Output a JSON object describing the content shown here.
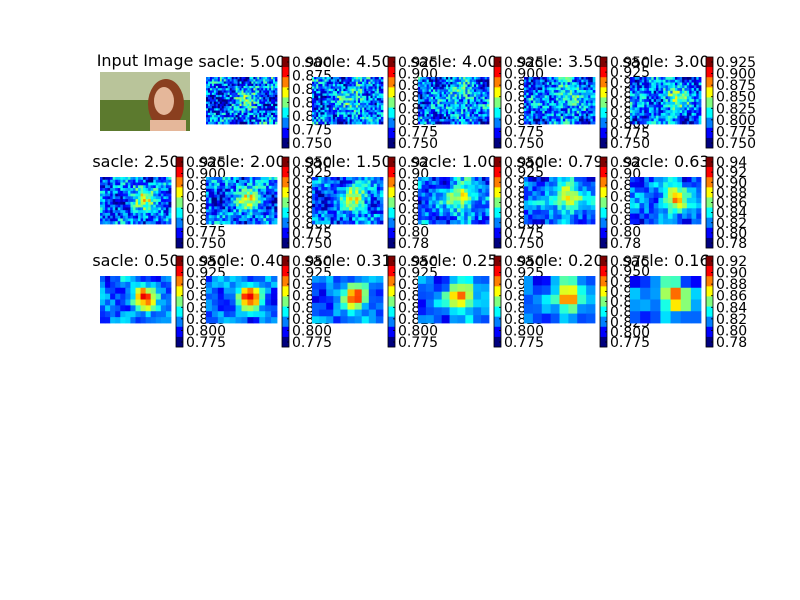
{
  "input_panel": {
    "title": "Input Image",
    "sky_color": "#b9c49a",
    "field_color": "#5c7a2e",
    "hair_color": "#8a3f1f",
    "skin_color": "#e5b79a"
  },
  "colormap": [
    "#00007f",
    "#0000ff",
    "#007fff",
    "#00ffff",
    "#7fff7f",
    "#ffff00",
    "#ff7f00",
    "#ff0000",
    "#7f0000"
  ],
  "chart_data": {
    "type": "heatmap",
    "colormap_name": "jet",
    "panels": [
      {
        "title": "sacle: 5.00",
        "ticks": [
          "0.900",
          "0.875",
          "0.850",
          "0.825",
          "0.800",
          "0.775",
          "0.750"
        ],
        "detail": 1.0
      },
      {
        "title": "sacle: 4.50",
        "ticks": [
          "0.925",
          "0.900",
          "0.875",
          "0.850",
          "0.825",
          "0.800",
          "0.775",
          "0.750"
        ],
        "detail": 0.95
      },
      {
        "title": "sacle: 4.00",
        "ticks": [
          "0.925",
          "0.900",
          "0.875",
          "0.850",
          "0.825",
          "0.800",
          "0.775",
          "0.750"
        ],
        "detail": 0.9
      },
      {
        "title": "sacle: 3.50",
        "ticks": [
          "0.950",
          "0.925",
          "0.900",
          "0.875",
          "0.850",
          "0.825",
          "0.800",
          "0.775",
          "0.750"
        ],
        "detail": 0.85
      },
      {
        "title": "sacle: 3.00",
        "ticks": [
          "0.925",
          "0.900",
          "0.875",
          "0.850",
          "0.825",
          "0.800",
          "0.775",
          "0.750"
        ],
        "detail": 0.8
      },
      {
        "title": "sacle: 2.50",
        "ticks": [
          "0.925",
          "0.900",
          "0.875",
          "0.850",
          "0.825",
          "0.800",
          "0.775",
          "0.750"
        ],
        "detail": 0.75
      },
      {
        "title": "sacle: 2.00",
        "ticks": [
          "0.950",
          "0.925",
          "0.900",
          "0.875",
          "0.850",
          "0.825",
          "0.800",
          "0.775",
          "0.750"
        ],
        "detail": 0.7
      },
      {
        "title": "sacle: 1.50",
        "ticks": [
          "0.92",
          "0.90",
          "0.88",
          "0.86",
          "0.84",
          "0.82",
          "0.80",
          "0.78"
        ],
        "detail": 0.6
      },
      {
        "title": "sacle: 1.00",
        "ticks": [
          "0.950",
          "0.925",
          "0.900",
          "0.875",
          "0.850",
          "0.825",
          "0.800",
          "0.775",
          "0.750"
        ],
        "detail": 0.5
      },
      {
        "title": "sacle: 0.79",
        "ticks": [
          "0.92",
          "0.90",
          "0.88",
          "0.86",
          "0.84",
          "0.82",
          "0.80",
          "0.78"
        ],
        "detail": 0.4
      },
      {
        "title": "sacle: 0.63",
        "ticks": [
          "0.94",
          "0.92",
          "0.90",
          "0.88",
          "0.86",
          "0.84",
          "0.82",
          "0.80",
          "0.78"
        ],
        "detail": 0.35
      },
      {
        "title": "sacle: 0.50",
        "ticks": [
          "0.950",
          "0.925",
          "0.900",
          "0.875",
          "0.850",
          "0.825",
          "0.800",
          "0.775"
        ],
        "detail": 0.3
      },
      {
        "title": "sacle: 0.40",
        "ticks": [
          "0.950",
          "0.925",
          "0.900",
          "0.875",
          "0.850",
          "0.825",
          "0.800",
          "0.775"
        ],
        "detail": 0.25
      },
      {
        "title": "sacle: 0.31",
        "ticks": [
          "0.950",
          "0.925",
          "0.900",
          "0.875",
          "0.850",
          "0.825",
          "0.800",
          "0.775"
        ],
        "detail": 0.2
      },
      {
        "title": "sacle: 0.25",
        "ticks": [
          "0.950",
          "0.925",
          "0.900",
          "0.875",
          "0.850",
          "0.825",
          "0.800",
          "0.775"
        ],
        "detail": 0.15
      },
      {
        "title": "sacle: 0.20",
        "ticks": [
          "0.975",
          "0.950",
          "0.925",
          "0.900",
          "0.875",
          "0.850",
          "0.825",
          "0.800",
          "0.775"
        ],
        "detail": 0.12
      },
      {
        "title": "sacle: 0.16",
        "ticks": [
          "0.92",
          "0.90",
          "0.88",
          "0.86",
          "0.84",
          "0.82",
          "0.80",
          "0.78"
        ],
        "detail": 0.08
      }
    ]
  }
}
